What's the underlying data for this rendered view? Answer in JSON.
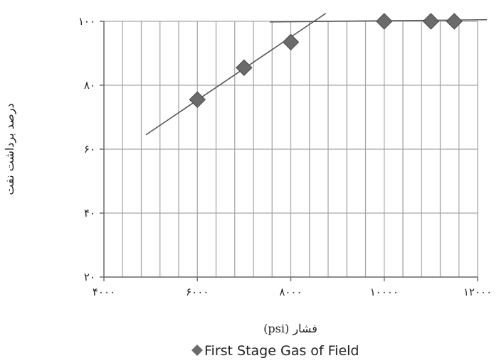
{
  "chart_data": {
    "type": "scatter",
    "xlabel": "فشار (psi)",
    "ylabel": "درصد برداشت نفت",
    "xlim": [
      4000,
      12000
    ],
    "ylim": [
      20,
      100
    ],
    "x_ticks": [
      4000,
      6000,
      8000,
      10000,
      12000
    ],
    "x_tick_labels": [
      "۴۰۰۰",
      "۶۰۰۰",
      "۸۰۰۰",
      "۱۰۰۰۰",
      "۱۲۰۰۰"
    ],
    "y_ticks": [
      20,
      40,
      60,
      80,
      100
    ],
    "y_tick_labels": [
      "۲۰",
      "۴۰",
      "۶۰",
      "۸۰",
      "۱۰۰"
    ],
    "x_grid_step": 400,
    "y_grid_step": 20,
    "grid": true,
    "legend_position": "bottom",
    "series": [
      {
        "name": "First Stage Gas of Field",
        "marker": "diamond",
        "color": "#6b6b6b",
        "x": [
          6000,
          7000,
          8000,
          10000,
          11000,
          11500
        ],
        "y": [
          75.5,
          85.5,
          93.5,
          100,
          100,
          100
        ]
      }
    ],
    "trend_lines": [
      {
        "x": [
          4900,
          8750
        ],
        "y": [
          64.5,
          102.5
        ],
        "color": "#555555"
      },
      {
        "x": [
          7550,
          12200
        ],
        "y": [
          99.8,
          100.5
        ],
        "color": "#555555"
      }
    ]
  }
}
